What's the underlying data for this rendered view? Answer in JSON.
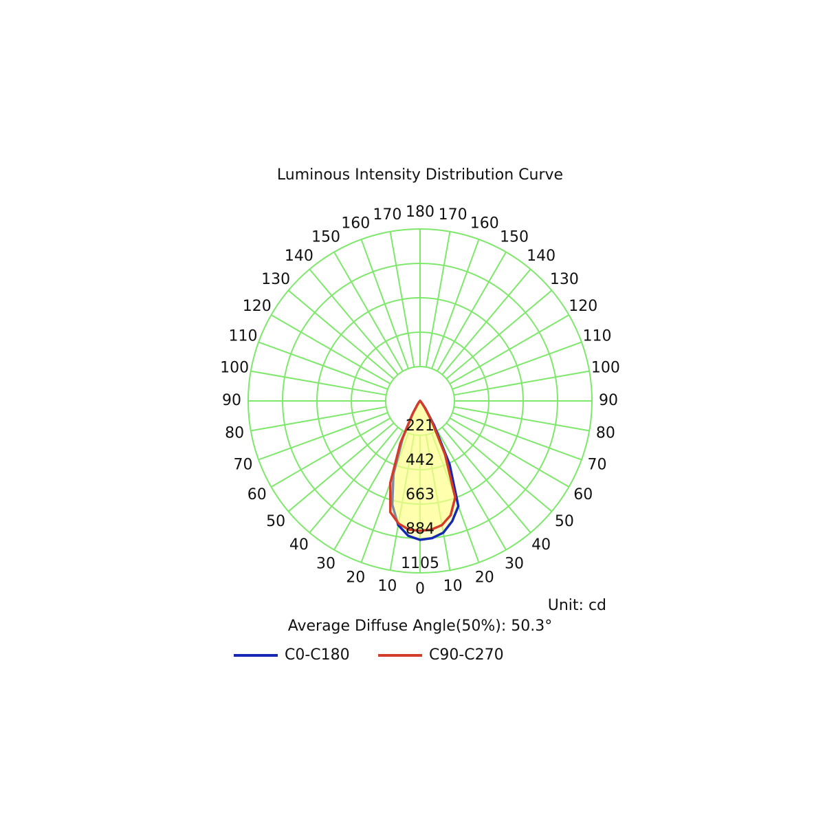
{
  "chart_data": {
    "type": "polar",
    "title": "Luminous Intensity Distribution Curve",
    "unit_label": "Unit: cd",
    "note": "Average Diffuse Angle(50%): 50.3°",
    "angles": [
      0,
      5,
      10,
      15,
      20,
      25,
      30,
      35,
      40,
      45,
      50,
      55,
      60,
      65,
      70,
      75,
      80,
      85,
      90
    ],
    "angle_labels": [
      0,
      10,
      20,
      30,
      40,
      50,
      60,
      70,
      80,
      90,
      100,
      110,
      120,
      130,
      140,
      150,
      160,
      170,
      180
    ],
    "rlim": [
      0,
      1105
    ],
    "rticks": [
      221,
      442,
      663,
      884,
      1105
    ],
    "grid_color": "#7de86a",
    "series": [
      {
        "name": "C0-C180",
        "color": "#1428b4",
        "values": [
          893,
          885,
          860,
          800,
          720,
          450,
          180,
          60,
          20,
          5,
          0,
          0,
          0,
          0,
          0,
          0,
          0,
          0,
          0
        ],
        "values_opposite": [
          893,
          870,
          810,
          690,
          500,
          260,
          90,
          30,
          10,
          0,
          0,
          0,
          0,
          0,
          0,
          0,
          0,
          0,
          0
        ]
      },
      {
        "name": "C90-C270",
        "color": "#d23c28",
        "values": [
          835,
          830,
          810,
          760,
          660,
          380,
          150,
          50,
          15,
          5,
          0,
          0,
          0,
          0,
          0,
          0,
          0,
          0,
          0
        ],
        "values_opposite": [
          835,
          830,
          800,
          740,
          560,
          300,
          100,
          30,
          10,
          0,
          0,
          0,
          0,
          0,
          0,
          0,
          0,
          0,
          0
        ]
      }
    ]
  }
}
